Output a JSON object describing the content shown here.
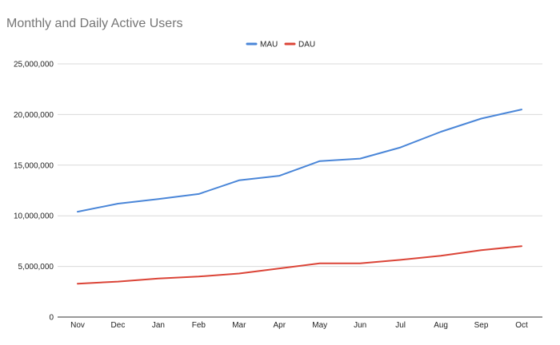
{
  "chart_data": {
    "type": "line",
    "title": "Monthly and Daily Active Users",
    "xlabel": "",
    "ylabel": "",
    "categories": [
      "Nov",
      "Dec",
      "Jan",
      "Feb",
      "Mar",
      "Apr",
      "May",
      "Jun",
      "Jul",
      "Aug",
      "Sep",
      "Oct"
    ],
    "ylim": [
      0,
      25000000
    ],
    "yticks": [
      "0",
      "5,000,000",
      "10,000,000",
      "15,000,000",
      "20,000,000",
      "25,000,000"
    ],
    "grid": true,
    "legend_position": "top-center",
    "series": [
      {
        "name": "MAU",
        "color": "#4a86d8",
        "values": [
          10400000,
          11200000,
          11650000,
          12150000,
          13500000,
          13950000,
          15400000,
          15650000,
          16750000,
          18300000,
          19600000,
          20500000
        ]
      },
      {
        "name": "DAU",
        "color": "#db4437",
        "values": [
          3300000,
          3500000,
          3800000,
          4000000,
          4300000,
          4800000,
          5300000,
          5300000,
          5650000,
          6050000,
          6600000,
          7000000
        ]
      }
    ]
  }
}
